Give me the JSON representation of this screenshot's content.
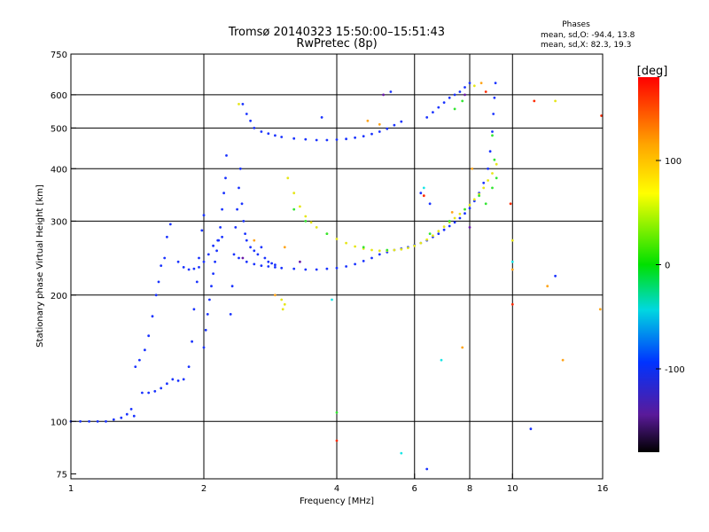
{
  "chart_data": {
    "type": "scatter",
    "title": "Tromsø 20140323 15:50:00–15:51:43",
    "subtitle": "RwPretec (8p)",
    "xlabel": "Frequency [MHz]",
    "ylabel": "Stationary phase Virtual Height [km]",
    "x_scale": "log",
    "y_scale": "log",
    "xlim": [
      1,
      16
    ],
    "ylim": [
      73,
      750
    ],
    "x_ticks": [
      1,
      2,
      4,
      6,
      8,
      10,
      16
    ],
    "x_tick_labels": [
      "1",
      "2",
      "4",
      "6",
      "8",
      "10",
      "16"
    ],
    "y_ticks": [
      75,
      100,
      200,
      300,
      400,
      500,
      600,
      750
    ],
    "y_tick_labels": [
      "75",
      "100",
      "200",
      "300",
      "400",
      "500",
      "600",
      "750"
    ],
    "x_gridlines": [
      2,
      4,
      6,
      8,
      10
    ],
    "y_gridlines": [
      100,
      200,
      300,
      400,
      500,
      600
    ],
    "grid": true,
    "stats": {
      "heading": "Phases",
      "line_o": "mean, sd,O: -94.4, 13.8",
      "line_x": "mean, sd,X: 82.3, 19.3"
    },
    "colorbar": {
      "label": "[deg]",
      "range": [
        -180,
        180
      ],
      "ticks": [
        100,
        0,
        -100
      ],
      "tick_labels": [
        "100",
        "0",
        "-100"
      ]
    },
    "series": [
      {
        "phase": -100,
        "color": "#1a33ff",
        "points": [
          [
            1.0,
            100
          ],
          [
            1.05,
            100
          ],
          [
            1.1,
            100
          ],
          [
            1.15,
            100
          ],
          [
            1.2,
            100
          ],
          [
            1.25,
            101
          ],
          [
            1.3,
            102
          ],
          [
            1.34,
            104
          ],
          [
            1.37,
            107
          ],
          [
            1.39,
            103
          ],
          [
            1.4,
            135
          ],
          [
            1.43,
            140
          ],
          [
            1.47,
            148
          ],
          [
            1.5,
            160
          ],
          [
            1.53,
            178
          ],
          [
            1.56,
            200
          ],
          [
            1.58,
            215
          ],
          [
            1.6,
            235
          ],
          [
            1.63,
            245
          ],
          [
            1.65,
            275
          ],
          [
            1.68,
            295
          ],
          [
            1.45,
            117
          ],
          [
            1.5,
            117
          ],
          [
            1.55,
            118
          ],
          [
            1.6,
            120
          ],
          [
            1.65,
            123
          ],
          [
            1.7,
            126
          ],
          [
            1.75,
            125
          ],
          [
            1.8,
            126
          ],
          [
            1.85,
            135
          ],
          [
            1.88,
            155
          ],
          [
            1.9,
            185
          ],
          [
            1.93,
            215
          ],
          [
            1.95,
            245
          ],
          [
            1.98,
            285
          ],
          [
            2.0,
            310
          ],
          [
            1.75,
            240
          ],
          [
            1.8,
            233
          ],
          [
            1.85,
            230
          ],
          [
            1.9,
            231
          ],
          [
            1.95,
            233
          ],
          [
            2.0,
            240
          ],
          [
            2.05,
            250
          ],
          [
            2.1,
            262
          ],
          [
            2.15,
            270
          ],
          [
            2.2,
            275
          ],
          [
            2.0,
            150
          ],
          [
            2.02,
            165
          ],
          [
            2.04,
            180
          ],
          [
            2.06,
            195
          ],
          [
            2.08,
            210
          ],
          [
            2.1,
            225
          ],
          [
            2.12,
            240
          ],
          [
            2.14,
            255
          ],
          [
            2.16,
            270
          ],
          [
            2.18,
            290
          ],
          [
            2.2,
            320
          ],
          [
            2.22,
            350
          ],
          [
            2.24,
            380
          ],
          [
            2.25,
            430
          ],
          [
            2.3,
            180
          ],
          [
            2.32,
            210
          ],
          [
            2.34,
            250
          ],
          [
            2.36,
            290
          ],
          [
            2.38,
            320
          ],
          [
            2.4,
            360
          ],
          [
            2.42,
            400
          ],
          [
            2.44,
            330
          ],
          [
            2.46,
            300
          ],
          [
            2.48,
            280
          ],
          [
            2.5,
            270
          ],
          [
            2.55,
            260
          ],
          [
            2.6,
            255
          ],
          [
            2.65,
            250
          ],
          [
            2.7,
            260
          ],
          [
            2.75,
            245
          ],
          [
            2.8,
            240
          ],
          [
            2.85,
            238
          ],
          [
            2.9,
            236
          ],
          [
            2.45,
            570
          ],
          [
            2.5,
            540
          ],
          [
            2.55,
            520
          ],
          [
            2.6,
            500
          ],
          [
            2.7,
            490
          ],
          [
            2.8,
            485
          ],
          [
            2.9,
            480
          ],
          [
            3.0,
            476
          ],
          [
            3.2,
            472
          ],
          [
            3.4,
            470
          ],
          [
            3.6,
            468
          ],
          [
            3.8,
            468
          ],
          [
            4.0,
            469
          ],
          [
            4.2,
            471
          ],
          [
            4.4,
            474
          ],
          [
            4.6,
            478
          ],
          [
            4.8,
            484
          ],
          [
            5.0,
            490
          ],
          [
            5.2,
            498
          ],
          [
            5.4,
            508
          ],
          [
            5.6,
            518
          ],
          [
            2.4,
            245
          ],
          [
            2.5,
            240
          ],
          [
            2.6,
            237
          ],
          [
            2.7,
            235
          ],
          [
            2.8,
            234
          ],
          [
            2.9,
            233
          ],
          [
            3.0,
            232
          ],
          [
            3.2,
            231
          ],
          [
            3.4,
            230
          ],
          [
            3.6,
            230
          ],
          [
            3.8,
            231
          ],
          [
            4.0,
            232
          ],
          [
            4.2,
            234
          ],
          [
            4.4,
            237
          ],
          [
            4.6,
            241
          ],
          [
            4.8,
            245
          ],
          [
            5.0,
            250
          ],
          [
            5.2,
            253
          ],
          [
            5.4,
            256
          ],
          [
            5.6,
            258
          ],
          [
            5.8,
            260
          ],
          [
            6.0,
            263
          ],
          [
            6.2,
            266
          ],
          [
            6.4,
            270
          ],
          [
            6.6,
            275
          ],
          [
            6.8,
            280
          ],
          [
            7.0,
            286
          ],
          [
            7.2,
            292
          ],
          [
            7.4,
            298
          ],
          [
            7.6,
            305
          ],
          [
            7.8,
            313
          ],
          [
            8.0,
            322
          ],
          [
            8.2,
            335
          ],
          [
            8.4,
            350
          ],
          [
            8.6,
            370
          ],
          [
            8.8,
            400
          ],
          [
            8.9,
            440
          ],
          [
            9.0,
            490
          ],
          [
            9.05,
            540
          ],
          [
            9.1,
            590
          ],
          [
            9.15,
            640
          ],
          [
            6.4,
            530
          ],
          [
            6.6,
            545
          ],
          [
            6.8,
            560
          ],
          [
            7.0,
            575
          ],
          [
            7.2,
            590
          ],
          [
            7.4,
            600
          ],
          [
            7.6,
            610
          ],
          [
            7.8,
            625
          ],
          [
            8.0,
            640
          ],
          [
            3.7,
            530
          ],
          [
            5.3,
            610
          ],
          [
            6.2,
            350
          ],
          [
            6.5,
            330
          ],
          [
            6.4,
            77
          ],
          [
            11.0,
            96
          ],
          [
            12.5,
            222
          ]
        ]
      },
      {
        "phase": 100,
        "color": "#e6e61a",
        "points": [
          [
            3.1,
            380
          ],
          [
            3.2,
            350
          ],
          [
            3.3,
            325
          ],
          [
            3.4,
            308
          ],
          [
            3.5,
            298
          ],
          [
            3.6,
            290
          ],
          [
            3.8,
            280
          ],
          [
            4.0,
            272
          ],
          [
            4.2,
            266
          ],
          [
            4.4,
            261
          ],
          [
            4.6,
            258
          ],
          [
            4.8,
            256
          ],
          [
            5.0,
            255
          ],
          [
            5.2,
            255
          ],
          [
            5.4,
            256
          ],
          [
            5.6,
            257
          ],
          [
            5.8,
            259
          ],
          [
            6.0,
            262
          ],
          [
            6.2,
            266
          ],
          [
            6.4,
            271
          ],
          [
            6.6,
            277
          ],
          [
            6.8,
            284
          ],
          [
            7.0,
            291
          ],
          [
            7.2,
            298
          ],
          [
            7.4,
            305
          ],
          [
            7.6,
            312
          ],
          [
            7.8,
            320
          ],
          [
            8.0,
            328
          ],
          [
            8.2,
            338
          ],
          [
            8.4,
            348
          ],
          [
            8.6,
            360
          ],
          [
            8.8,
            375
          ],
          [
            9.0,
            390
          ],
          [
            9.2,
            410
          ],
          [
            3.0,
            195
          ],
          [
            3.02,
            185
          ],
          [
            3.05,
            190
          ],
          [
            2.4,
            570
          ],
          [
            8.2,
            630
          ],
          [
            12.5,
            580
          ],
          [
            10.0,
            270
          ]
        ]
      },
      {
        "phase": 40,
        "color": "#33e633",
        "points": [
          [
            3.2,
            320
          ],
          [
            3.4,
            300
          ],
          [
            3.8,
            280
          ],
          [
            4.6,
            260
          ],
          [
            5.2,
            256
          ],
          [
            6.5,
            280
          ],
          [
            7.2,
            300
          ],
          [
            7.8,
            320
          ],
          [
            8.4,
            345
          ],
          [
            8.7,
            330
          ],
          [
            9.0,
            360
          ],
          [
            9.1,
            420
          ],
          [
            9.2,
            380
          ],
          [
            7.7,
            580
          ],
          [
            9.0,
            480
          ],
          [
            4.0,
            105
          ],
          [
            7.4,
            555
          ]
        ]
      },
      {
        "phase": 160,
        "color": "#ff2a00",
        "points": [
          [
            11.2,
            580
          ],
          [
            15.9,
            535
          ],
          [
            8.7,
            610
          ],
          [
            6.3,
            345
          ],
          [
            4.0,
            90
          ],
          [
            10.0,
            190
          ],
          [
            9.9,
            330
          ]
        ]
      },
      {
        "phase": 130,
        "color": "#ffa51a",
        "points": [
          [
            2.6,
            270
          ],
          [
            2.9,
            200
          ],
          [
            3.05,
            260
          ],
          [
            4.7,
            520
          ],
          [
            5.0,
            510
          ],
          [
            7.7,
            150
          ],
          [
            10.0,
            230
          ],
          [
            12.0,
            210
          ],
          [
            13.0,
            140
          ],
          [
            15.8,
            185
          ],
          [
            7.3,
            315
          ],
          [
            8.5,
            640
          ],
          [
            8.1,
            400
          ]
        ]
      },
      {
        "phase": 10,
        "color": "#1ae6e6",
        "points": [
          [
            5.6,
            84
          ],
          [
            6.3,
            360
          ],
          [
            10.0,
            240
          ],
          [
            3.9,
            195
          ],
          [
            6.9,
            140
          ]
        ]
      },
      {
        "phase": -150,
        "color": "#6a1aa8",
        "points": [
          [
            2.45,
            245
          ],
          [
            3.3,
            240
          ],
          [
            8.0,
            290
          ],
          [
            5.1,
            600
          ],
          [
            7.8,
            600
          ]
        ]
      }
    ]
  }
}
